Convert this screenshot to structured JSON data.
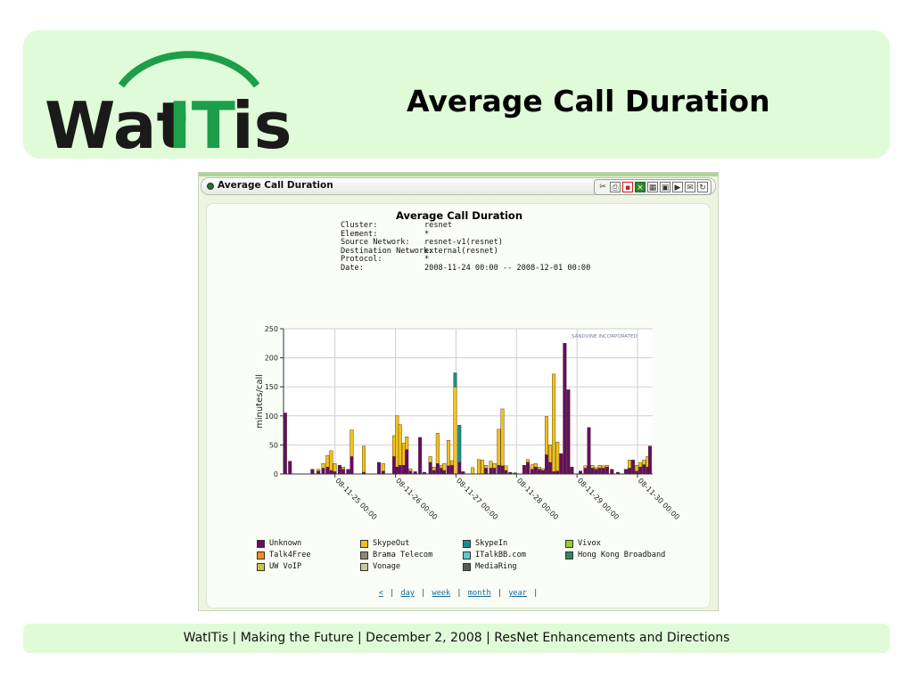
{
  "slide": {
    "title": "Average Call Duration",
    "logo_text": "WatITis",
    "footer": "WatITis | Making the Future | December 2, 2008 | ResNet Enhancements and Directions"
  },
  "widget": {
    "title": "Average Call Duration",
    "toolbar_icons": [
      "tools-icon",
      "print-icon",
      "pdf-icon",
      "excel-icon",
      "table-icon",
      "save-icon",
      "export-icon",
      "email-icon",
      "refresh-icon"
    ]
  },
  "meta": [
    {
      "label": "Cluster:",
      "value": "resnet"
    },
    {
      "label": "Element:",
      "value": "*"
    },
    {
      "label": "Source Network:",
      "value": "resnet-v1(resnet)"
    },
    {
      "label": "Destination Network:",
      "value": "external(resnet)"
    },
    {
      "label": "Protocol:",
      "value": "*"
    },
    {
      "label": "Date:",
      "value": "2008-11-24 00:00 -- 2008-12-01 00:00"
    }
  ],
  "chart_data": {
    "type": "bar",
    "title": "Average Call Duration",
    "ylabel": "minutes/call",
    "ylim": [
      0,
      250
    ],
    "yticks": [
      0,
      50,
      100,
      150,
      200,
      250
    ],
    "xticks": [
      "08-11-25 00:00",
      "08-11-26 00:00",
      "08-11-27 00:00",
      "08-11-28 00:00",
      "08-11-29 00:00",
      "08-11-30 00:00"
    ],
    "watermark": "SANDVINE INCORPORATED",
    "bars": [
      {
        "x": 0.0,
        "u": 105,
        "s": 0,
        "i": 0
      },
      {
        "x": 0.8,
        "u": 22,
        "s": 0,
        "i": 0
      },
      {
        "x": 4.5,
        "u": 8,
        "s": 0,
        "i": 0
      },
      {
        "x": 5.5,
        "u": 5,
        "s": 3,
        "i": 0
      },
      {
        "x": 6.3,
        "u": 10,
        "s": 8,
        "i": 0
      },
      {
        "x": 7.0,
        "u": 12,
        "s": 20,
        "i": 0
      },
      {
        "x": 7.6,
        "u": 6,
        "s": 34,
        "i": 0
      },
      {
        "x": 8.2,
        "u": 4,
        "s": 14,
        "i": 0
      },
      {
        "x": 9.0,
        "u": 15,
        "s": 0,
        "i": 0
      },
      {
        "x": 9.6,
        "u": 8,
        "s": 4,
        "i": 0
      },
      {
        "x": 10.4,
        "u": 8,
        "s": 0,
        "i": 0
      },
      {
        "x": 11.0,
        "u": 30,
        "s": 46,
        "i": 0
      },
      {
        "x": 13.0,
        "u": 3,
        "s": 45,
        "i": 0
      },
      {
        "x": 15.5,
        "u": 20,
        "s": 0,
        "i": 0
      },
      {
        "x": 16.2,
        "u": 5,
        "s": 13,
        "i": 0
      },
      {
        "x": 18.0,
        "u": 30,
        "s": 36,
        "i": 0
      },
      {
        "x": 18.5,
        "u": 12,
        "s": 88,
        "i": 0
      },
      {
        "x": 19.0,
        "u": 15,
        "s": 70,
        "i": 0
      },
      {
        "x": 19.6,
        "u": 15,
        "s": 38,
        "i": 0
      },
      {
        "x": 20.1,
        "u": 42,
        "s": 22,
        "i": 0
      },
      {
        "x": 20.7,
        "u": 5,
        "s": 4,
        "i": 0
      },
      {
        "x": 21.5,
        "u": 4,
        "s": 0,
        "i": 0
      },
      {
        "x": 22.3,
        "u": 63,
        "s": 0,
        "i": 0
      },
      {
        "x": 23.0,
        "u": 3,
        "s": 0,
        "i": 0
      },
      {
        "x": 24.0,
        "u": 20,
        "s": 10,
        "i": 0
      },
      {
        "x": 24.6,
        "u": 6,
        "s": 6,
        "i": 0
      },
      {
        "x": 25.2,
        "u": 18,
        "s": 52,
        "i": 0
      },
      {
        "x": 25.8,
        "u": 10,
        "s": 5,
        "i": 0
      },
      {
        "x": 26.3,
        "u": 6,
        "s": 12,
        "i": 0
      },
      {
        "x": 27.0,
        "u": 14,
        "s": 44,
        "i": 0
      },
      {
        "x": 27.6,
        "u": 15,
        "s": 8,
        "i": 0
      },
      {
        "x": 28.1,
        "u": 0,
        "s": 150,
        "i": 24
      },
      {
        "x": 28.8,
        "u": 20,
        "s": 0,
        "i": 64
      },
      {
        "x": 29.4,
        "u": 4,
        "s": 0,
        "i": 0
      },
      {
        "x": 31.0,
        "u": 0,
        "s": 11,
        "i": 0
      },
      {
        "x": 32.0,
        "u": 0,
        "s": 25,
        "i": 0
      },
      {
        "x": 32.6,
        "u": 0,
        "s": 24,
        "i": 0
      },
      {
        "x": 33.2,
        "u": 10,
        "s": 5,
        "i": 0
      },
      {
        "x": 34.0,
        "u": 10,
        "s": 12,
        "i": 0
      },
      {
        "x": 34.6,
        "u": 10,
        "s": 8,
        "i": 0
      },
      {
        "x": 35.3,
        "u": 15,
        "s": 62,
        "i": 0
      },
      {
        "x": 35.9,
        "u": 14,
        "s": 98,
        "i": 0
      },
      {
        "x": 36.5,
        "u": 6,
        "s": 8,
        "i": 0
      },
      {
        "x": 37.2,
        "u": 3,
        "s": 0,
        "i": 0
      },
      {
        "x": 38.0,
        "u": 2,
        "s": 0,
        "i": 0
      },
      {
        "x": 39.5,
        "u": 15,
        "s": 0,
        "i": 0
      },
      {
        "x": 40.1,
        "u": 20,
        "s": 5,
        "i": 0
      },
      {
        "x": 40.8,
        "u": 8,
        "s": 8,
        "i": 0
      },
      {
        "x": 41.4,
        "u": 12,
        "s": 6,
        "i": 0
      },
      {
        "x": 42.0,
        "u": 8,
        "s": 4,
        "i": 0
      },
      {
        "x": 42.6,
        "u": 6,
        "s": 3,
        "i": 0
      },
      {
        "x": 43.2,
        "u": 33,
        "s": 66,
        "i": 0
      },
      {
        "x": 43.8,
        "u": 20,
        "s": 30,
        "i": 0
      },
      {
        "x": 44.4,
        "u": 4,
        "s": 168,
        "i": 0
      },
      {
        "x": 45.0,
        "u": 5,
        "s": 50,
        "i": 0
      },
      {
        "x": 45.6,
        "u": 35,
        "s": 0,
        "i": 0
      },
      {
        "x": 46.2,
        "u": 225,
        "s": 0,
        "i": 0
      },
      {
        "x": 46.8,
        "u": 145,
        "s": 0,
        "i": 0
      },
      {
        "x": 47.4,
        "u": 12,
        "s": 0,
        "i": 0
      },
      {
        "x": 48.8,
        "u": 5,
        "s": 0,
        "i": 0
      },
      {
        "x": 49.6,
        "u": 10,
        "s": 4,
        "i": 0
      },
      {
        "x": 50.2,
        "u": 80,
        "s": 0,
        "i": 0
      },
      {
        "x": 50.8,
        "u": 10,
        "s": 5,
        "i": 0
      },
      {
        "x": 51.4,
        "u": 8,
        "s": 3,
        "i": 0
      },
      {
        "x": 52.0,
        "u": 10,
        "s": 5,
        "i": 0
      },
      {
        "x": 52.6,
        "u": 10,
        "s": 4,
        "i": 0
      },
      {
        "x": 53.2,
        "u": 12,
        "s": 3,
        "i": 0
      },
      {
        "x": 54.0,
        "u": 8,
        "s": 0,
        "i": 0
      },
      {
        "x": 55.0,
        "u": 3,
        "s": 0,
        "i": 0
      },
      {
        "x": 56.3,
        "u": 8,
        "s": 0,
        "i": 0
      },
      {
        "x": 56.9,
        "u": 10,
        "s": 14,
        "i": 0
      },
      {
        "x": 57.5,
        "u": 24,
        "s": 0,
        "i": 0
      },
      {
        "x": 58.1,
        "u": 5,
        "s": 10,
        "i": 0
      },
      {
        "x": 58.7,
        "u": 12,
        "s": 8,
        "i": 0
      },
      {
        "x": 59.3,
        "u": 16,
        "s": 8,
        "i": 0
      },
      {
        "x": 59.9,
        "u": 12,
        "s": 18,
        "i": 0
      },
      {
        "x": 60.3,
        "u": 48,
        "s": 0,
        "i": 0
      }
    ]
  },
  "legend": [
    {
      "label": "Unknown",
      "color": "#6a0a6a"
    },
    {
      "label": "SkypeOut",
      "color": "#f2c21b"
    },
    {
      "label": "SkypeIn",
      "color": "#178e8e"
    },
    {
      "label": "Vivox",
      "color": "#9acd32"
    },
    {
      "label": "Talk4Free",
      "color": "#f08c1a"
    },
    {
      "label": "Brama Telecom",
      "color": "#8c8c6c"
    },
    {
      "label": "ITalkBB.com",
      "color": "#5fc8c8"
    },
    {
      "label": "Hong Kong Broadband",
      "color": "#2e8b57"
    },
    {
      "label": "UW VoIP",
      "color": "#c8c83c"
    },
    {
      "label": "Vonage",
      "color": "#c8c8a0"
    },
    {
      "label": "MediaRing",
      "color": "#5a5a5a"
    }
  ],
  "nav": {
    "prev": "<",
    "day": "day",
    "week": "week",
    "month": "month",
    "year": "year",
    "sep": "|"
  }
}
